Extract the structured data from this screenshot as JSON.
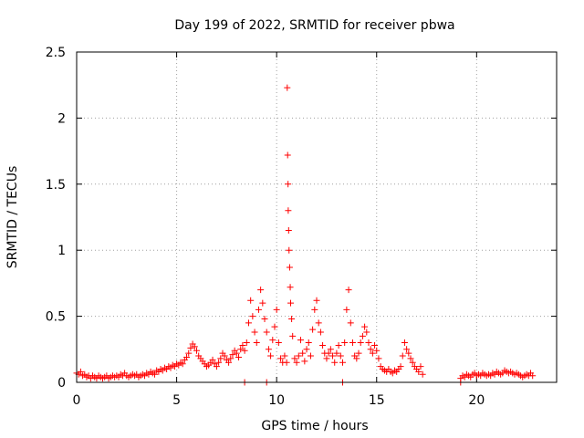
{
  "chart_data": {
    "type": "scatter",
    "title": "Day 199 of 2022, SRMTID for receiver pbwa",
    "xlabel": "GPS time / hours",
    "ylabel": "SRMTID / TECUs",
    "xlim": [
      0,
      24
    ],
    "ylim": [
      0,
      2.5
    ],
    "xticks": [
      0,
      5,
      10,
      15,
      20
    ],
    "yticks": [
      0,
      0.5,
      1,
      1.5,
      2,
      2.5
    ],
    "xtick_labels": [
      "0",
      "5",
      "10",
      "15",
      "20"
    ],
    "ytick_labels": [
      "0",
      "0.5",
      "1",
      "1.5",
      "2",
      "2.5"
    ],
    "grid": true,
    "marker": "+",
    "color": "#ff0000",
    "series": [
      {
        "points": [
          [
            0.0,
            0.07
          ],
          [
            0.1,
            0.06
          ],
          [
            0.2,
            0.08
          ],
          [
            0.3,
            0.05
          ],
          [
            0.4,
            0.06
          ],
          [
            0.5,
            0.04
          ],
          [
            0.6,
            0.05
          ],
          [
            0.7,
            0.03
          ],
          [
            0.8,
            0.05
          ],
          [
            0.9,
            0.04
          ],
          [
            1.0,
            0.03
          ],
          [
            1.1,
            0.05
          ],
          [
            1.2,
            0.04
          ],
          [
            1.3,
            0.03
          ],
          [
            1.4,
            0.04
          ],
          [
            1.5,
            0.05
          ],
          [
            1.6,
            0.03
          ],
          [
            1.7,
            0.04
          ],
          [
            1.8,
            0.05
          ],
          [
            1.9,
            0.04
          ],
          [
            2.0,
            0.05
          ],
          [
            2.1,
            0.04
          ],
          [
            2.2,
            0.06
          ],
          [
            2.3,
            0.05
          ],
          [
            2.4,
            0.07
          ],
          [
            2.5,
            0.05
          ],
          [
            2.6,
            0.04
          ],
          [
            2.7,
            0.05
          ],
          [
            2.8,
            0.06
          ],
          [
            2.9,
            0.05
          ],
          [
            3.0,
            0.06
          ],
          [
            3.1,
            0.04
          ],
          [
            3.2,
            0.05
          ],
          [
            3.3,
            0.06
          ],
          [
            3.4,
            0.05
          ],
          [
            3.5,
            0.07
          ],
          [
            3.6,
            0.06
          ],
          [
            3.7,
            0.08
          ],
          [
            3.8,
            0.07
          ],
          [
            3.9,
            0.06
          ],
          [
            4.0,
            0.09
          ],
          [
            4.1,
            0.08
          ],
          [
            4.2,
            0.1
          ],
          [
            4.3,
            0.09
          ],
          [
            4.4,
            0.11
          ],
          [
            4.5,
            0.1
          ],
          [
            4.6,
            0.12
          ],
          [
            4.7,
            0.11
          ],
          [
            4.8,
            0.13
          ],
          [
            4.9,
            0.12
          ],
          [
            5.0,
            0.14
          ],
          [
            5.1,
            0.13
          ],
          [
            5.2,
            0.15
          ],
          [
            5.3,
            0.14
          ],
          [
            5.4,
            0.17
          ],
          [
            5.5,
            0.19
          ],
          [
            5.6,
            0.22
          ],
          [
            5.7,
            0.26
          ],
          [
            5.8,
            0.29
          ],
          [
            5.9,
            0.27
          ],
          [
            6.0,
            0.24
          ],
          [
            6.1,
            0.2
          ],
          [
            6.2,
            0.18
          ],
          [
            6.3,
            0.16
          ],
          [
            6.4,
            0.14
          ],
          [
            6.5,
            0.12
          ],
          [
            6.6,
            0.13
          ],
          [
            6.7,
            0.15
          ],
          [
            6.8,
            0.17
          ],
          [
            6.9,
            0.14
          ],
          [
            7.0,
            0.12
          ],
          [
            7.1,
            0.15
          ],
          [
            7.2,
            0.18
          ],
          [
            7.3,
            0.22
          ],
          [
            7.4,
            0.2
          ],
          [
            7.5,
            0.17
          ],
          [
            7.6,
            0.15
          ],
          [
            7.7,
            0.18
          ],
          [
            7.8,
            0.21
          ],
          [
            7.9,
            0.24
          ],
          [
            8.0,
            0.22
          ],
          [
            8.1,
            0.19
          ],
          [
            8.2,
            0.25
          ],
          [
            8.3,
            0.28
          ],
          [
            8.4,
            0.24
          ],
          [
            8.5,
            0.3
          ],
          [
            8.6,
            0.45
          ],
          [
            8.7,
            0.62
          ],
          [
            8.8,
            0.5
          ],
          [
            8.9,
            0.38
          ],
          [
            9.0,
            0.3
          ],
          [
            9.1,
            0.55
          ],
          [
            9.2,
            0.7
          ],
          [
            9.3,
            0.6
          ],
          [
            9.4,
            0.48
          ],
          [
            9.5,
            0.38
          ],
          [
            9.6,
            0.25
          ],
          [
            9.7,
            0.2
          ],
          [
            9.8,
            0.32
          ],
          [
            9.9,
            0.42
          ],
          [
            10.0,
            0.55
          ],
          [
            10.1,
            0.3
          ],
          [
            10.2,
            0.18
          ],
          [
            10.3,
            0.15
          ],
          [
            10.4,
            0.2
          ],
          [
            10.5,
            0.15
          ],
          [
            10.53,
            2.23
          ],
          [
            10.55,
            1.72
          ],
          [
            10.57,
            1.5
          ],
          [
            10.58,
            1.3
          ],
          [
            10.6,
            1.15
          ],
          [
            10.62,
            1.0
          ],
          [
            10.65,
            0.87
          ],
          [
            10.68,
            0.72
          ],
          [
            10.7,
            0.6
          ],
          [
            10.75,
            0.48
          ],
          [
            10.8,
            0.35
          ],
          [
            10.9,
            0.18
          ],
          [
            11.0,
            0.15
          ],
          [
            11.1,
            0.2
          ],
          [
            11.2,
            0.32
          ],
          [
            11.3,
            0.22
          ],
          [
            11.4,
            0.16
          ],
          [
            11.5,
            0.25
          ],
          [
            11.6,
            0.3
          ],
          [
            11.7,
            0.2
          ],
          [
            11.8,
            0.4
          ],
          [
            11.9,
            0.55
          ],
          [
            12.0,
            0.62
          ],
          [
            12.1,
            0.45
          ],
          [
            12.2,
            0.38
          ],
          [
            12.3,
            0.28
          ],
          [
            12.4,
            0.22
          ],
          [
            12.5,
            0.18
          ],
          [
            12.6,
            0.22
          ],
          [
            12.7,
            0.25
          ],
          [
            12.8,
            0.2
          ],
          [
            12.9,
            0.15
          ],
          [
            13.0,
            0.22
          ],
          [
            13.1,
            0.28
          ],
          [
            13.2,
            0.2
          ],
          [
            13.3,
            0.15
          ],
          [
            13.4,
            0.3
          ],
          [
            13.5,
            0.55
          ],
          [
            13.6,
            0.7
          ],
          [
            13.7,
            0.45
          ],
          [
            13.8,
            0.3
          ],
          [
            13.9,
            0.2
          ],
          [
            14.0,
            0.18
          ],
          [
            14.1,
            0.22
          ],
          [
            14.2,
            0.3
          ],
          [
            14.3,
            0.35
          ],
          [
            14.4,
            0.42
          ],
          [
            14.5,
            0.38
          ],
          [
            14.6,
            0.3
          ],
          [
            14.7,
            0.25
          ],
          [
            14.8,
            0.22
          ],
          [
            14.9,
            0.28
          ],
          [
            15.0,
            0.24
          ],
          [
            15.1,
            0.18
          ],
          [
            15.2,
            0.12
          ],
          [
            15.3,
            0.1
          ],
          [
            15.4,
            0.09
          ],
          [
            15.5,
            0.08
          ],
          [
            15.6,
            0.1
          ],
          [
            15.7,
            0.08
          ],
          [
            15.8,
            0.07
          ],
          [
            15.9,
            0.09
          ],
          [
            16.0,
            0.08
          ],
          [
            16.1,
            0.1
          ],
          [
            16.2,
            0.12
          ],
          [
            16.3,
            0.2
          ],
          [
            16.4,
            0.3
          ],
          [
            16.5,
            0.25
          ],
          [
            16.6,
            0.22
          ],
          [
            16.7,
            0.18
          ],
          [
            16.8,
            0.15
          ],
          [
            16.9,
            0.12
          ],
          [
            17.0,
            0.1
          ],
          [
            17.1,
            0.08
          ],
          [
            17.2,
            0.12
          ],
          [
            17.3,
            0.06
          ],
          [
            8.4,
            0.0
          ],
          [
            9.5,
            0.0
          ],
          [
            13.3,
            0.0
          ],
          [
            19.2,
            0.0
          ],
          [
            19.2,
            0.03
          ],
          [
            19.3,
            0.05
          ],
          [
            19.4,
            0.04
          ],
          [
            19.5,
            0.06
          ],
          [
            19.6,
            0.05
          ],
          [
            19.7,
            0.04
          ],
          [
            19.8,
            0.06
          ],
          [
            19.9,
            0.07
          ],
          [
            20.0,
            0.05
          ],
          [
            20.1,
            0.06
          ],
          [
            20.2,
            0.05
          ],
          [
            20.3,
            0.07
          ],
          [
            20.4,
            0.06
          ],
          [
            20.5,
            0.05
          ],
          [
            20.6,
            0.06
          ],
          [
            20.7,
            0.05
          ],
          [
            20.8,
            0.07
          ],
          [
            20.9,
            0.06
          ],
          [
            21.0,
            0.08
          ],
          [
            21.1,
            0.07
          ],
          [
            21.2,
            0.06
          ],
          [
            21.3,
            0.07
          ],
          [
            21.4,
            0.09
          ],
          [
            21.5,
            0.08
          ],
          [
            21.6,
            0.07
          ],
          [
            21.7,
            0.08
          ],
          [
            21.8,
            0.07
          ],
          [
            21.9,
            0.06
          ],
          [
            22.0,
            0.07
          ],
          [
            22.1,
            0.06
          ],
          [
            22.2,
            0.05
          ],
          [
            22.3,
            0.04
          ],
          [
            22.4,
            0.05
          ],
          [
            22.5,
            0.06
          ],
          [
            22.6,
            0.05
          ],
          [
            22.7,
            0.07
          ],
          [
            22.8,
            0.05
          ]
        ]
      }
    ]
  }
}
